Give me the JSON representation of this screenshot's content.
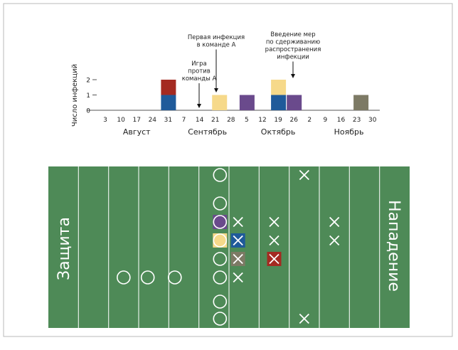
{
  "chart_data": [
    {
      "type": "bar",
      "ylabel": "Число инфекций",
      "ylim": [
        0,
        2
      ],
      "yticks": [
        "0",
        "1",
        "2"
      ],
      "x_tick_labels": [
        "3",
        "10",
        "17",
        "24",
        "31",
        "7",
        "14",
        "21",
        "28",
        "5",
        "12",
        "19",
        "26",
        "2",
        "9",
        "16",
        "23",
        "30"
      ],
      "month_labels": [
        {
          "label": "Август",
          "span": [
            0,
            4
          ]
        },
        {
          "label": "Сентябрь",
          "span": [
            5,
            8
          ]
        },
        {
          "label": "Октябрь",
          "span": [
            9,
            13
          ]
        },
        {
          "label": "Ноябрь",
          "span": [
            14,
            17
          ]
        }
      ],
      "bars": [
        {
          "x": 4.0,
          "segments": [
            {
              "color": "#1f5a9a",
              "value": 1
            },
            {
              "color": "#a42a21",
              "value": 1
            }
          ]
        },
        {
          "x": 7.25,
          "segments": [
            {
              "color": "#f6d98a",
              "value": 1
            }
          ]
        },
        {
          "x": 9.0,
          "segments": [
            {
              "color": "#6a4a8c",
              "value": 1
            }
          ]
        },
        {
          "x": 11.0,
          "segments": [
            {
              "color": "#1f5a9a",
              "value": 1
            },
            {
              "color": "#f6d98a",
              "value": 1
            }
          ]
        },
        {
          "x": 12.0,
          "segments": [
            {
              "color": "#6a4a8c",
              "value": 1
            }
          ]
        },
        {
          "x": 16.25,
          "segments": [
            {
              "color": "#7d7a65",
              "value": 1
            }
          ]
        }
      ],
      "annotations": [
        {
          "lines": [
            "Первая инфекция",
            "в команде А"
          ],
          "x": 7.0
        },
        {
          "lines": [
            "Игра",
            "против",
            "команды А"
          ],
          "x": 6.0
        },
        {
          "lines": [
            "Введение мер",
            "по сдерживанию",
            "распространения",
            "инфекции"
          ],
          "x": 11.5
        }
      ]
    },
    {
      "type": "diagram",
      "field_color": "#4e8a57",
      "left_label": "Защита",
      "right_label": "Нападение",
      "circles": [
        {
          "col": 2.5,
          "row": 5
        },
        {
          "col": 3.3,
          "row": 5
        },
        {
          "col": 4.2,
          "row": 5
        },
        {
          "col": 5.7,
          "row": 0
        },
        {
          "col": 5.7,
          "row": 1
        },
        {
          "col": 5.7,
          "row": 2,
          "fill": "#6a4a8c"
        },
        {
          "col": 5.7,
          "row": 3,
          "fill": "#f6d98a"
        },
        {
          "col": 5.7,
          "row": 4
        },
        {
          "col": 5.7,
          "row": 5
        },
        {
          "col": 5.7,
          "row": 6
        },
        {
          "col": 5.7,
          "row": 7
        }
      ],
      "crosses": [
        {
          "col": 6.3,
          "row": 2
        },
        {
          "col": 6.3,
          "row": 3,
          "fill": "#1f5a9a"
        },
        {
          "col": 6.3,
          "row": 4,
          "fill": "#7d7a65"
        },
        {
          "col": 6.3,
          "row": 5
        },
        {
          "col": 7.5,
          "row": 2
        },
        {
          "col": 7.5,
          "row": 3
        },
        {
          "col": 7.5,
          "row": 4,
          "fill": "#a42a21"
        },
        {
          "col": 8.5,
          "row": 0
        },
        {
          "col": 8.5,
          "row": 7
        },
        {
          "col": 9.5,
          "row": 2
        },
        {
          "col": 9.5,
          "row": 3
        }
      ]
    }
  ]
}
